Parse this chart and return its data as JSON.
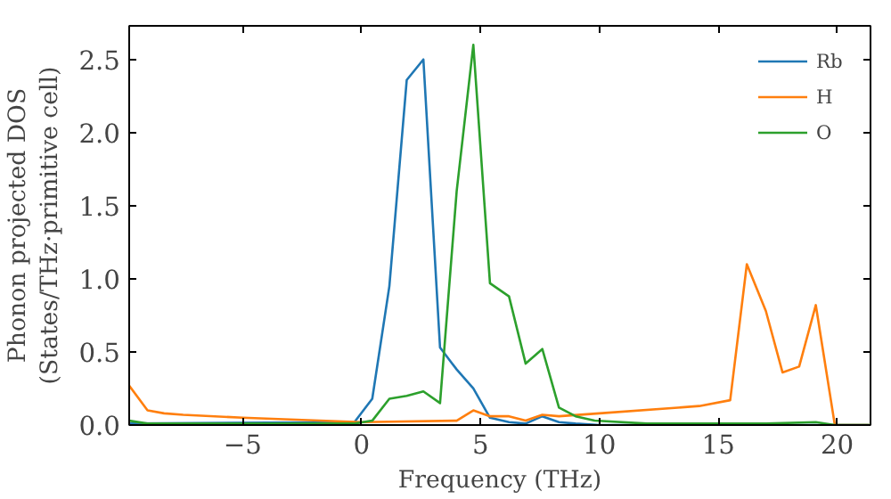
{
  "chart_data": {
    "type": "line",
    "xlabel": "Frequency (THz)",
    "ylabel": "Phonon projected DOS\n(States/THz·primitive cell)",
    "xlim": [
      -9.77,
      21.4
    ],
    "ylim": [
      0,
      2.73
    ],
    "xticks": [
      {
        "value": -5,
        "label": "−5"
      },
      0,
      5,
      10,
      15,
      20
    ],
    "yticks": [
      {
        "value": 0,
        "label": "0.0"
      },
      {
        "value": 0.5,
        "label": "0.5"
      },
      {
        "value": 1,
        "label": "1.0"
      },
      {
        "value": 1.5,
        "label": "1.5"
      },
      {
        "value": 2,
        "label": "2.0"
      },
      {
        "value": 2.5,
        "label": "2.5"
      }
    ],
    "grid": false,
    "legend": "top right",
    "line_style": "solid",
    "series": [
      {
        "name": "Rb",
        "color": "#1f77b4",
        "x": [
          -9.77,
          -0.3,
          0.45,
          1.17,
          1.9,
          2.6,
          3.3,
          4.0,
          4.7,
          5.4,
          6.2,
          6.9,
          7.6,
          8.3,
          9.0,
          10,
          15,
          21.4
        ],
        "values": [
          0.01,
          0.02,
          0.18,
          0.95,
          2.36,
          2.5,
          0.53,
          0.38,
          0.25,
          0.05,
          0.02,
          0.01,
          0.06,
          0.02,
          0.01,
          0.0,
          0.0,
          0.0
        ]
      },
      {
        "name": "H",
        "color": "#ff7f0e",
        "x": [
          -9.77,
          -9.0,
          -8.3,
          -7.5,
          -5,
          0,
          4.0,
          4.7,
          5.4,
          6.2,
          6.9,
          7.6,
          8.3,
          10,
          14.2,
          15.5,
          16.2,
          17.0,
          17.7,
          18.4,
          19.1,
          19.9,
          21.4
        ],
        "values": [
          0.27,
          0.1,
          0.08,
          0.07,
          0.05,
          0.02,
          0.03,
          0.1,
          0.06,
          0.06,
          0.03,
          0.07,
          0.06,
          0.08,
          0.13,
          0.17,
          1.1,
          0.78,
          0.36,
          0.4,
          0.82,
          0.0,
          0.0
        ]
      },
      {
        "name": "O",
        "color": "#2ca02c",
        "x": [
          -9.77,
          -9.0,
          -5,
          -0.3,
          0.45,
          1.17,
          1.9,
          2.6,
          3.3,
          4.0,
          4.7,
          5.4,
          6.2,
          6.9,
          7.6,
          8.3,
          9.0,
          9.8,
          12,
          17,
          19.1,
          19.9,
          21.4
        ],
        "values": [
          0.03,
          0.01,
          0.01,
          0.01,
          0.03,
          0.18,
          0.2,
          0.23,
          0.15,
          1.6,
          2.6,
          0.97,
          0.88,
          0.42,
          0.52,
          0.12,
          0.06,
          0.03,
          0.01,
          0.01,
          0.02,
          0.0,
          0.0
        ]
      }
    ]
  }
}
